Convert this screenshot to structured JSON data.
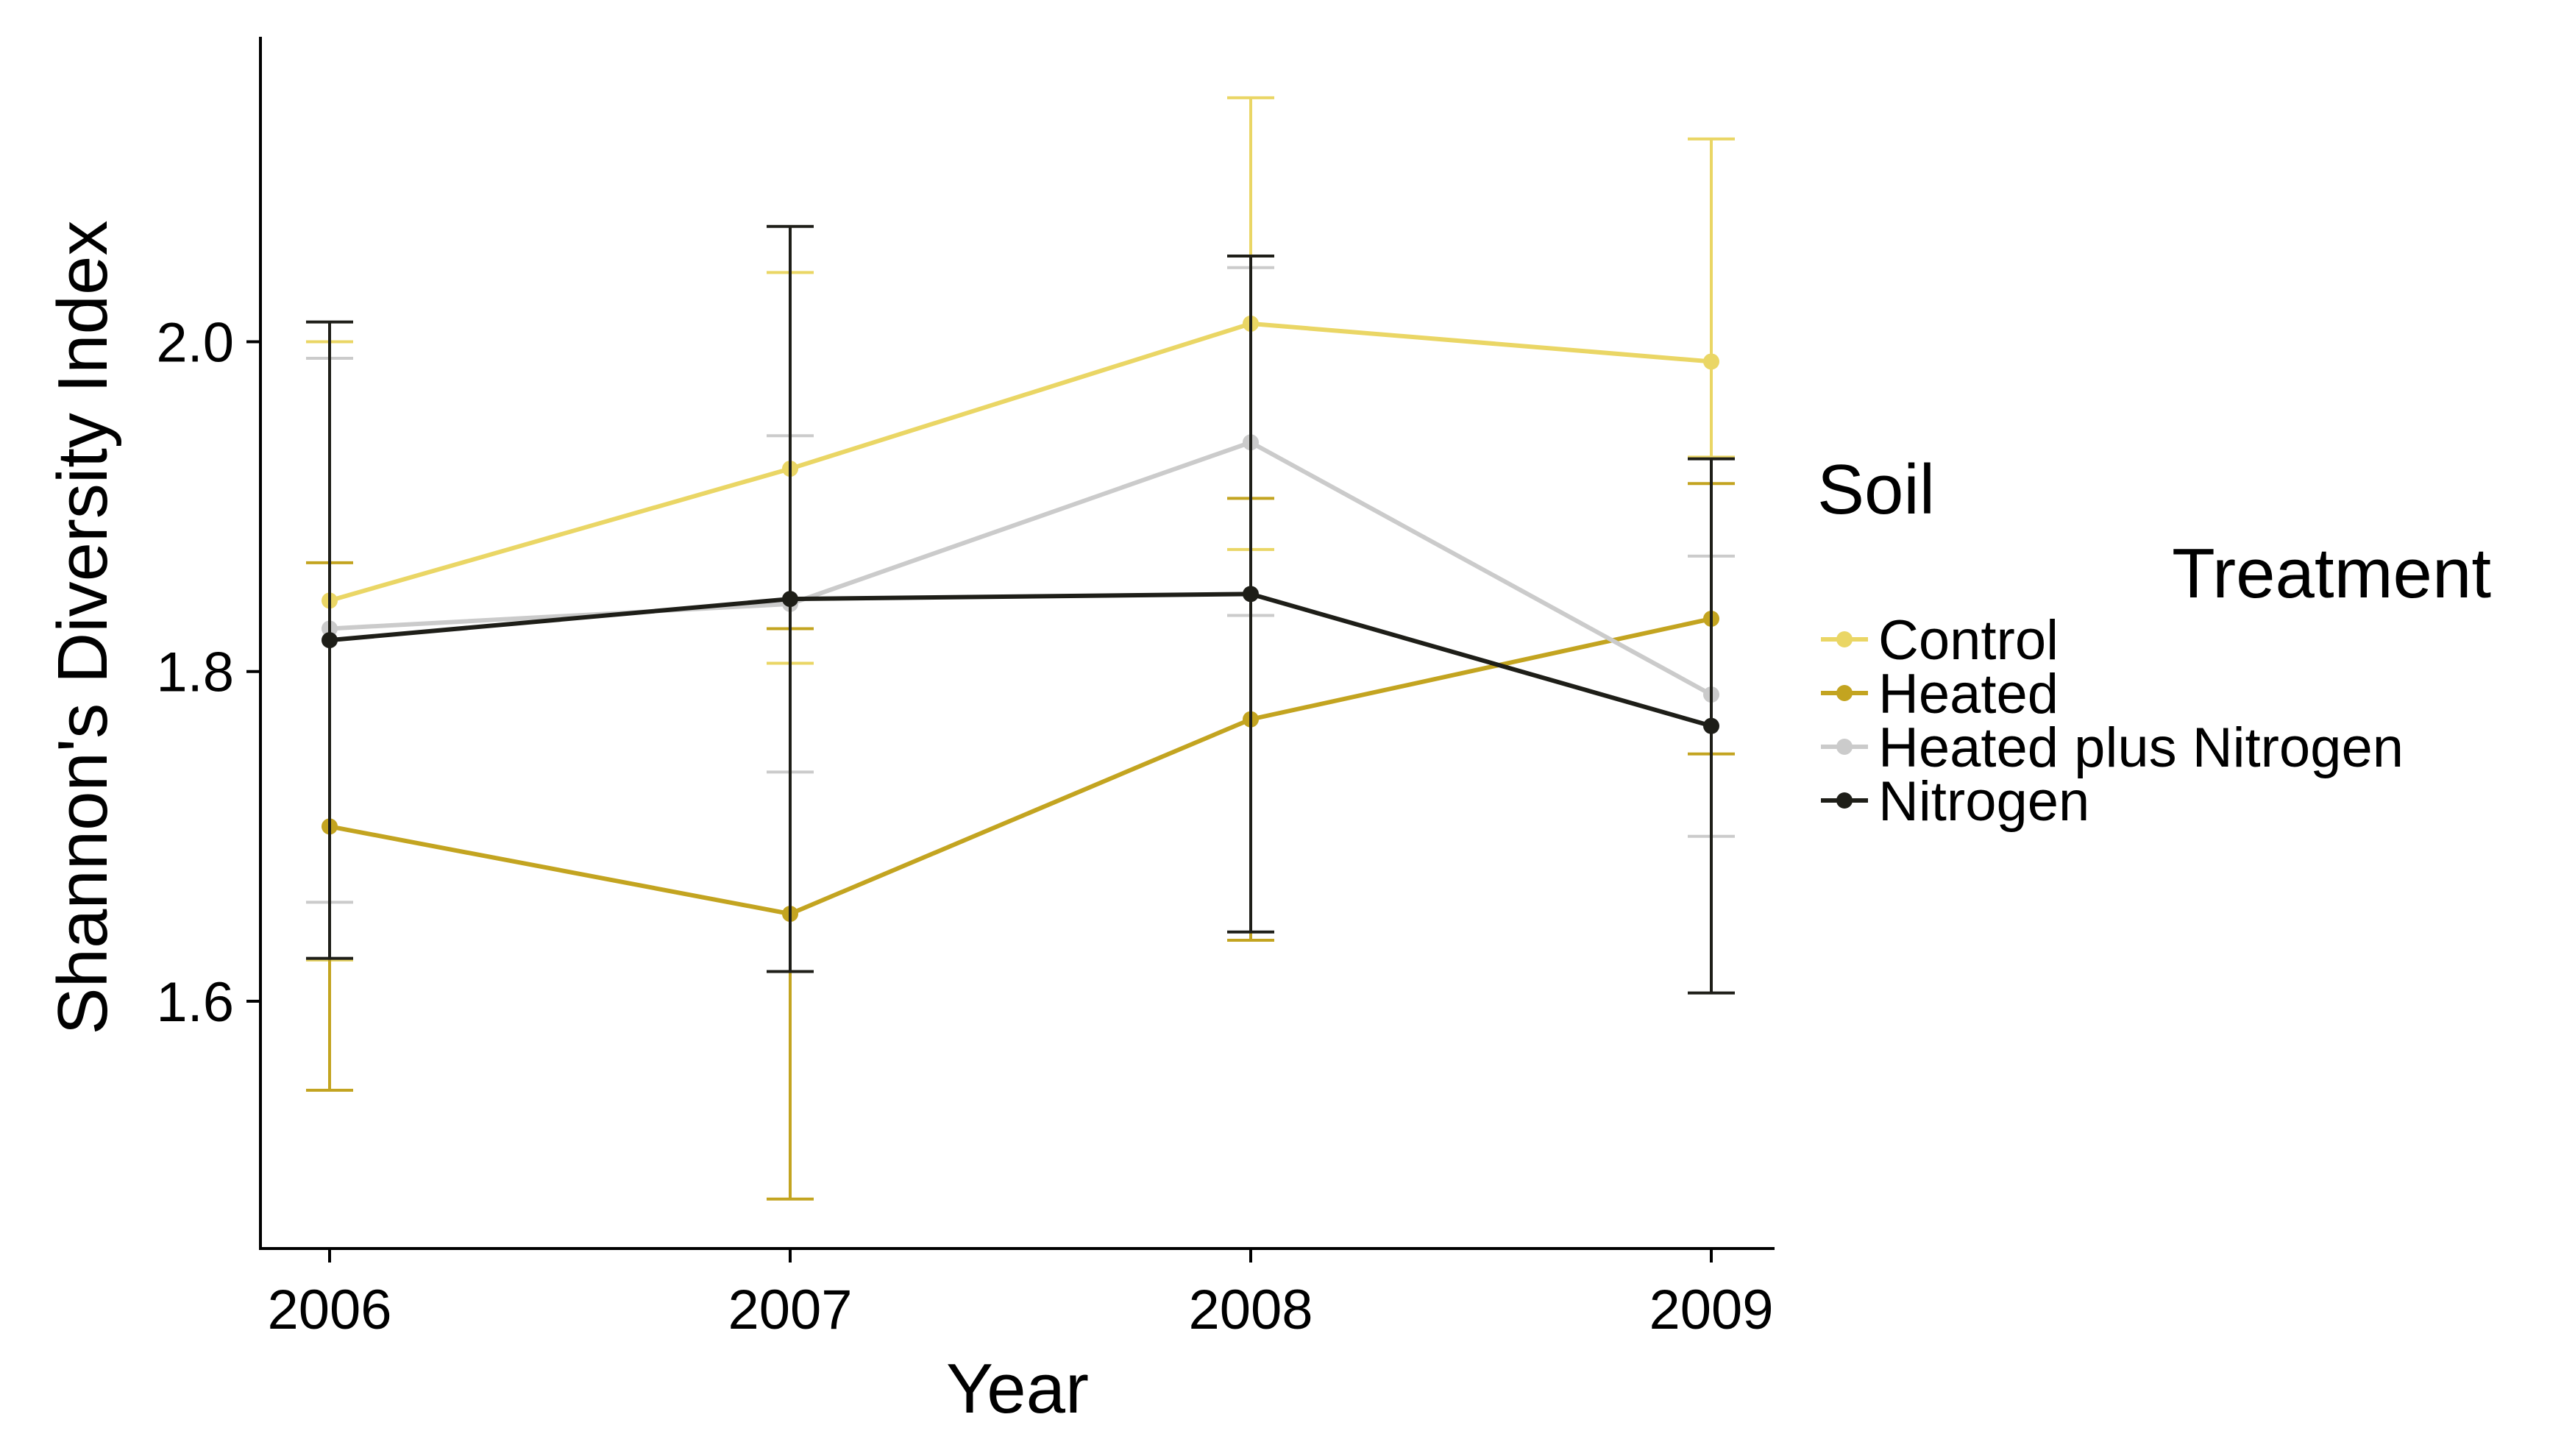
{
  "chart_data": {
    "type": "line",
    "title": "",
    "xlabel": "Year",
    "ylabel": "Shannon's Diversity Index",
    "x": [
      2006,
      2007,
      2008,
      2009
    ],
    "x_tick_labels": [
      "2006",
      "2007",
      "2008",
      "2009"
    ],
    "ylim": [
      1.45,
      2.185
    ],
    "y_ticks": [
      1.6,
      1.8,
      2.0
    ],
    "y_tick_labels": [
      "1.6",
      "1.8",
      "2.0"
    ],
    "grid": false,
    "legend": {
      "title_line1": "Soil",
      "title_line2": "Treatment",
      "placement": "right"
    },
    "series": [
      {
        "name": "Control",
        "color": "#EAD665",
        "values": [
          1.843,
          1.923,
          2.011,
          1.988
        ],
        "err_low": [
          1.625,
          1.805,
          1.874,
          1.93
        ],
        "err_high": [
          2.0,
          2.042,
          2.148,
          2.123
        ]
      },
      {
        "name": "Heated",
        "color": "#C3A420",
        "values": [
          1.706,
          1.653,
          1.771,
          1.832
        ],
        "err_low": [
          1.546,
          1.48,
          1.637,
          1.75
        ],
        "err_high": [
          1.866,
          1.826,
          1.905,
          1.914
        ]
      },
      {
        "name": "Heated plus Nitrogen",
        "color": "#CBCBCB",
        "values": [
          1.826,
          1.841,
          1.939,
          1.786
        ],
        "err_low": [
          1.66,
          1.739,
          1.834,
          1.7
        ],
        "err_high": [
          1.99,
          1.943,
          2.045,
          1.87
        ]
      },
      {
        "name": "Nitrogen",
        "color": "#1E1E18",
        "values": [
          1.819,
          1.844,
          1.847,
          1.767
        ],
        "err_low": [
          1.626,
          1.618,
          1.642,
          1.605
        ],
        "err_high": [
          2.012,
          2.07,
          2.052,
          1.929
        ]
      }
    ]
  }
}
